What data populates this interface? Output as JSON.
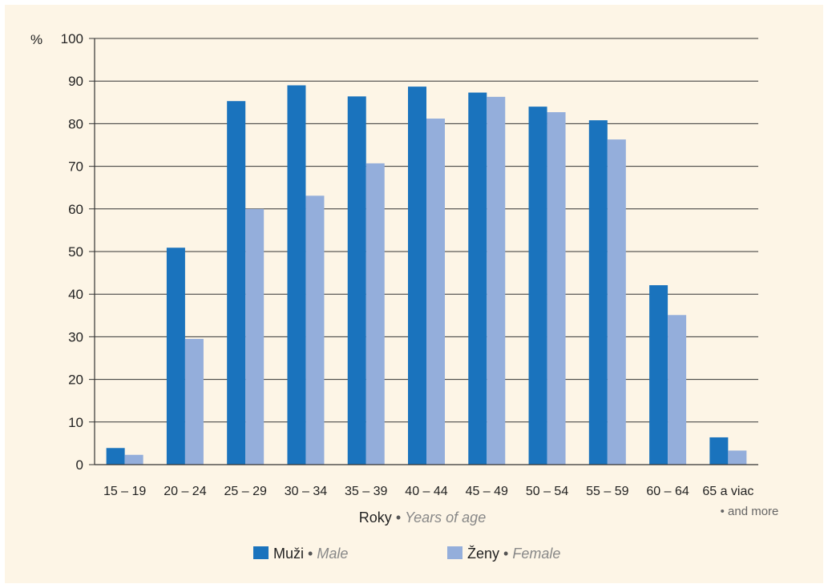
{
  "chart_data": {
    "type": "bar",
    "ylabel": "%",
    "ylim": [
      0,
      100
    ],
    "yticks": [
      0,
      10,
      20,
      30,
      40,
      50,
      60,
      70,
      80,
      90,
      100
    ],
    "grid": true,
    "categories": [
      "15 – 19",
      "20 – 24",
      "25 – 29",
      "30 – 34",
      "35 – 39",
      "40 – 44",
      "45 – 49",
      "50 – 54",
      "55 – 59",
      "60 – 64",
      "65 a viac"
    ],
    "category_note": "• and more",
    "xlabel": "Roky",
    "xlabel_en": "Years of age",
    "legend_position": "bottom",
    "series": [
      {
        "name": "Muži",
        "name_en": "Male",
        "color": "#1a73bd",
        "values": [
          3.9,
          50.9,
          85.3,
          89.0,
          86.4,
          88.7,
          87.3,
          84.0,
          80.8,
          42.1,
          6.4
        ]
      },
      {
        "name": "Ženy",
        "name_en": "Female",
        "color": "#94aedb",
        "values": [
          2.3,
          29.5,
          60.0,
          63.1,
          70.7,
          81.2,
          86.3,
          82.7,
          76.3,
          35.1,
          3.3
        ]
      }
    ]
  }
}
